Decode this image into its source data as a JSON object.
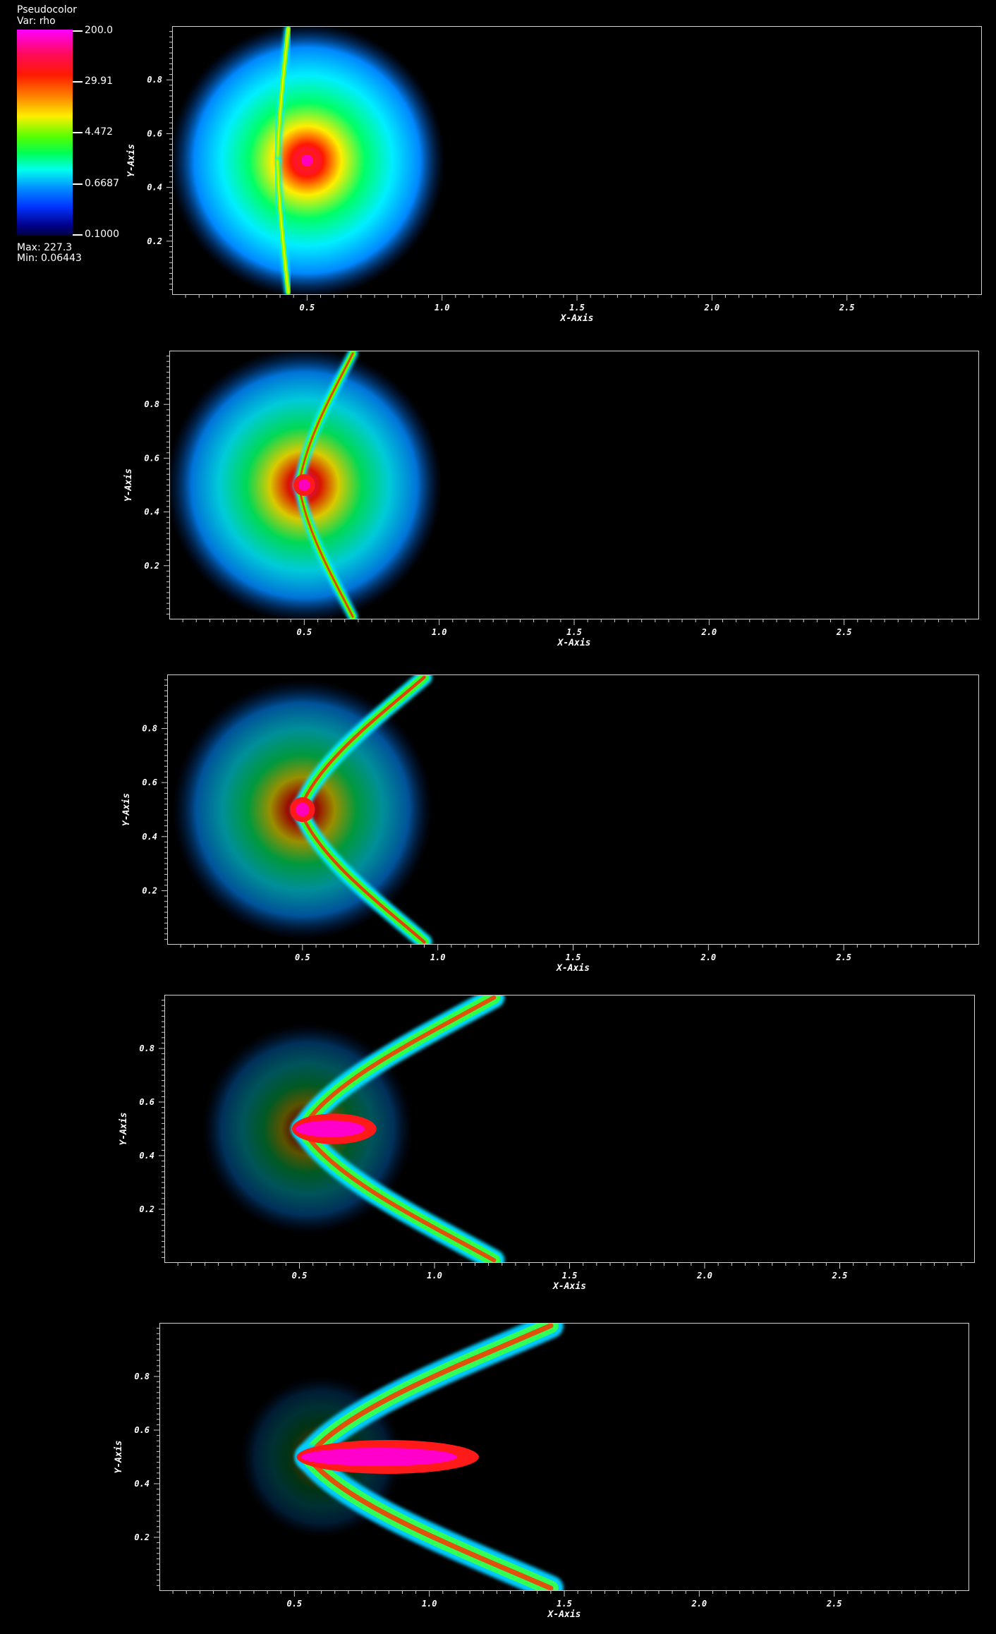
{
  "legend": {
    "plot_type": "Pseudocolor",
    "variable": "Var: rho",
    "ticks": [
      "200.0",
      "29.91",
      "4.472",
      "0.6687",
      "0.1000"
    ],
    "max_label": "Max:  227.3",
    "min_label": "Min:  0.06443",
    "colormap": [
      "#ff00ff",
      "#ff1a00",
      "#ffee00",
      "#00ff55",
      "#00ffee",
      "#0033ff",
      "#000044"
    ]
  },
  "axes": {
    "xlabel": "X-Axis",
    "ylabel": "Y-Axis",
    "xticks": [
      "0.5",
      "1.0",
      "1.5",
      "2.0",
      "2.5"
    ],
    "yticks": [
      "0.8",
      "0.6",
      "0.4",
      "0.2"
    ],
    "xlim": [
      0,
      3
    ],
    "ylim": [
      0,
      1
    ]
  },
  "frames": [
    {
      "name": "frame-1",
      "clump_center_x": 0.5,
      "shock_x": 0.39,
      "tail_x": 0.43
    },
    {
      "name": "frame-2",
      "clump_center_x": 0.5,
      "shock_x": 0.48,
      "tail_x": 0.68
    },
    {
      "name": "frame-3",
      "clump_center_x": 0.5,
      "shock_x": 0.49,
      "tail_x": 0.95
    },
    {
      "name": "frame-4",
      "clump_center_x": 0.53,
      "shock_x": 0.51,
      "tail_x": 1.22
    },
    {
      "name": "frame-5",
      "clump_center_x": 0.6,
      "shock_x": 0.55,
      "tail_x": 1.45
    }
  ]
}
